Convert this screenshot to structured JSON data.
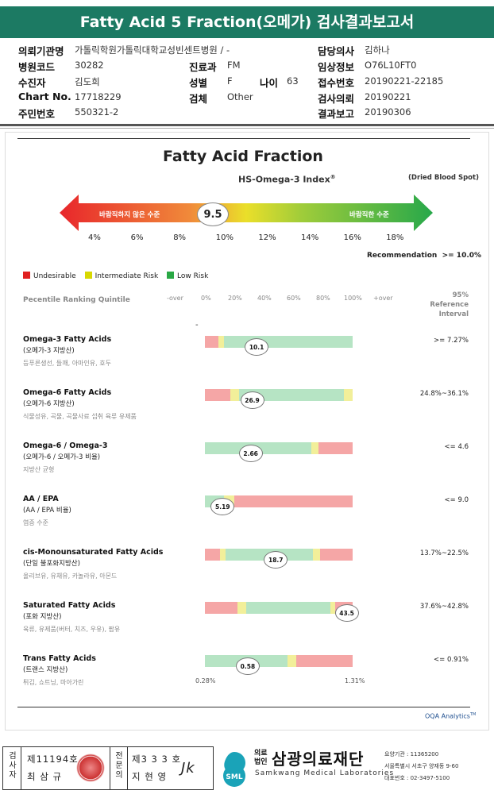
{
  "header": {
    "title": "Fatty Acid 5 Fraction(오메가) 검사결과보고서"
  },
  "patient": {
    "institution_label": "의뢰기관명",
    "institution": "가톨릭학원가톨릭대학교성빈센트병원 / -",
    "doctor_label": "담당의사",
    "doctor": "김하나",
    "hospital_code_label": "병원코드",
    "hospital_code": "30282",
    "dept_label": "진료과",
    "dept": "FM",
    "clinical_label": "임상정보",
    "clinical": "O76L10FT0",
    "examinee_label": "수진자",
    "examinee": "김도희",
    "sex_label": "성별",
    "sex": "F",
    "age_label": "나이",
    "age": "63",
    "receipt_label": "접수번호",
    "receipt": "20190221-22185",
    "chart_label": "Chart No.",
    "chart": "17718229",
    "specimen_label": "검체",
    "specimen": "Other",
    "request_label": "검사의뢰",
    "request": "20190221",
    "id_label": "주민번호",
    "id": "550321-2",
    "report_label": "결과보고",
    "report": "20190306"
  },
  "chart_data": {
    "type": "bar",
    "title": "Fatty Acid Fraction",
    "index_name": "HS-Omega-3 Index",
    "index_mark": "®",
    "specimen_note": "(Dried Blood Spot)",
    "index_value": 9.5,
    "index_value_label": "9.5",
    "index_ticks": [
      "4%",
      "6%",
      "8%",
      "10%",
      "12%",
      "14%",
      "16%",
      "18%"
    ],
    "index_scale": [
      4,
      18
    ],
    "undesirable_text": "바람직하지 않은 수준",
    "desirable_text": "바람직한 수준",
    "recommendation_label": "Recommendation",
    "recommendation_value": ">= 10.0%",
    "legend": [
      {
        "label": "Undesirable",
        "color": "#e02020"
      },
      {
        "label": "Intermediate Risk",
        "color": "#d8d800"
      },
      {
        "label": "Low Risk",
        "color": "#2aa845"
      }
    ],
    "percentile_label": "Pecentile Ranking Quintile",
    "axis_labels": [
      "-over",
      "0%",
      "20%",
      "40%",
      "60%",
      "80%",
      "100%",
      "+over"
    ],
    "reference_header": "95%\nReference Interval",
    "rows": [
      {
        "name": "Omega-3 Fatty Acids",
        "kr": "(오메가-3 지방산)",
        "desc": "등푸른생선, 들깨, 아마인유, 호두",
        "value": "10.1",
        "percentile": 35,
        "ref": ">= 7.27%",
        "segments": [
          [
            0,
            9,
            "r"
          ],
          [
            9,
            13,
            "y"
          ],
          [
            13,
            100,
            "g"
          ]
        ]
      },
      {
        "name": "Omega-6 Fatty Acids",
        "kr": "(오메가-6 지방산)",
        "desc": "식물성유, 곡물, 곡물사료 섭취 육류 유제품",
        "value": "26.9",
        "percentile": 32,
        "ref": "24.8%~36.1%",
        "segments": [
          [
            0,
            17,
            "r"
          ],
          [
            17,
            23,
            "y"
          ],
          [
            23,
            94,
            "g"
          ],
          [
            94,
            100,
            "y"
          ]
        ]
      },
      {
        "name": "Omega-6 / Omega-3",
        "kr": "(오메가-6 / 오메가-3 비율)",
        "desc": "지방산 균형",
        "value": "2.66",
        "percentile": 31,
        "ref": "<= 4.6",
        "segments": [
          [
            0,
            72,
            "g"
          ],
          [
            72,
            77,
            "y"
          ],
          [
            77,
            100,
            "r"
          ]
        ]
      },
      {
        "name": "AA / EPA",
        "kr": "(AA / EPA 비율)",
        "desc": "염증 수준",
        "value": "5.19",
        "percentile": 12,
        "ref": "<= 9.0",
        "segments": [
          [
            0,
            13,
            "g"
          ],
          [
            13,
            20,
            "y"
          ],
          [
            20,
            100,
            "r"
          ]
        ]
      },
      {
        "name": "cis-Monounsaturated Fatty Acids",
        "kr": "(단일 불포화지방산)",
        "desc": "올리브유, 유채유, 카놀라유, 아몬드",
        "value": "18.7",
        "percentile": 48,
        "ref": "13.7%~22.5%",
        "segments": [
          [
            0,
            10,
            "r"
          ],
          [
            10,
            14,
            "y"
          ],
          [
            14,
            73,
            "g"
          ],
          [
            73,
            78,
            "y"
          ],
          [
            78,
            100,
            "r"
          ]
        ]
      },
      {
        "name": "Saturated Fatty Acids",
        "kr": "(포화 지방산)",
        "desc": "육류, 유제품(버터, 치즈, 우유), 팜유",
        "value": "43.5",
        "percentile": 96,
        "ref": "37.6%~42.8%",
        "segments": [
          [
            0,
            22,
            "r"
          ],
          [
            22,
            28,
            "y"
          ],
          [
            28,
            85,
            "g"
          ],
          [
            85,
            88,
            "y"
          ],
          [
            88,
            100,
            "r"
          ]
        ]
      },
      {
        "name": "Trans Fatty Acids",
        "kr": "(트랜스 지방산)",
        "desc": "튀김, 쇼트닝, 마아가린",
        "value": "0.58",
        "percentile": 29,
        "ref": "<= 0.91%",
        "segments": [
          [
            0,
            56,
            "g"
          ],
          [
            56,
            62,
            "y"
          ],
          [
            62,
            100,
            "r"
          ]
        ]
      }
    ],
    "range_min_label": "0.28%",
    "range_max_label": "1.31%"
  },
  "footer_brand": "OQA Analytics",
  "footer_brand_mark": "TM",
  "signature": {
    "tester_label": "검사자",
    "tester_no": "제11194호",
    "tester_name": "최 삼 규",
    "doctor_label": "전문의",
    "doctor_no": "제3 3 3 호",
    "doctor_name": "지 현 영",
    "sign_text": "Jk"
  },
  "org": {
    "logo_text": "SML",
    "type_top": "의료",
    "type_bottom": "법인",
    "name": "삼광의료재단",
    "name_en": "Samkwang Medical Laboratories",
    "code": "요양기관 : 11365200",
    "address": "서울특별시 서초구 양재동 9-60",
    "phone": "대표번호 : 02-3497-5100"
  },
  "colors": {
    "red": "#f5a6a6",
    "yellow": "#f2ef9a",
    "green": "#b6e4c4",
    "title_bar": "#1c7a63"
  }
}
